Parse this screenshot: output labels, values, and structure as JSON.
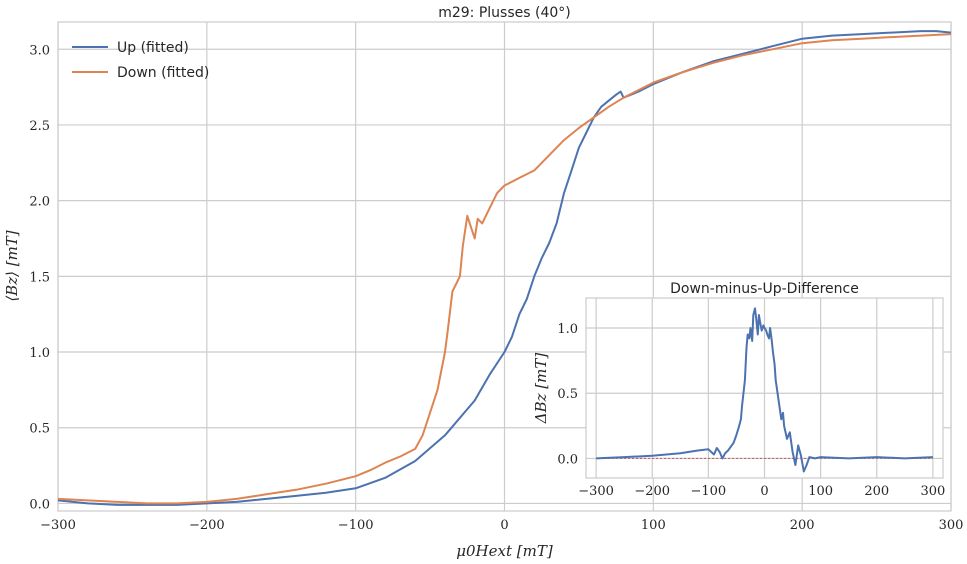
{
  "chart_data": [
    {
      "type": "line",
      "title": "m29: Plusses (40°)",
      "xlabel": "μ0Hext [mT]",
      "ylabel": "⟨Bz⟩ [mT]",
      "xlim": [
        -300,
        300
      ],
      "ylim": [
        -0.05,
        3.18
      ],
      "x_ticks": [
        -300,
        -200,
        -100,
        0,
        100,
        200,
        300
      ],
      "x_tick_labels": [
        "−300",
        "−200",
        "−100",
        "0",
        "100",
        "200",
        "300"
      ],
      "y_ticks": [
        0.0,
        0.5,
        1.0,
        1.5,
        2.0,
        2.5,
        3.0
      ],
      "y_tick_labels": [
        "0.0",
        "0.5",
        "1.0",
        "1.5",
        "2.0",
        "2.5",
        "3.0"
      ],
      "grid": true,
      "legend": "top-left",
      "series": [
        {
          "name": "Up (fitted)",
          "color": "#4c72b0",
          "x": [
            -300,
            -280,
            -260,
            -240,
            -220,
            -200,
            -180,
            -160,
            -140,
            -120,
            -100,
            -80,
            -60,
            -40,
            -20,
            -10,
            0,
            5,
            10,
            15,
            20,
            25,
            30,
            35,
            40,
            45,
            50,
            55,
            60,
            65,
            70,
            75,
            78,
            80,
            90,
            100,
            120,
            140,
            160,
            180,
            200,
            220,
            240,
            260,
            280,
            290,
            300
          ],
          "y": [
            0.02,
            0.0,
            -0.01,
            -0.01,
            -0.01,
            0.0,
            0.01,
            0.03,
            0.05,
            0.07,
            0.1,
            0.17,
            0.28,
            0.45,
            0.68,
            0.85,
            1.0,
            1.1,
            1.25,
            1.35,
            1.5,
            1.62,
            1.72,
            1.85,
            2.05,
            2.2,
            2.35,
            2.45,
            2.55,
            2.62,
            2.66,
            2.7,
            2.72,
            2.68,
            2.72,
            2.77,
            2.85,
            2.92,
            2.97,
            3.02,
            3.07,
            3.09,
            3.1,
            3.11,
            3.12,
            3.12,
            3.11
          ]
        },
        {
          "name": "Down (fitted)",
          "color": "#dd8452",
          "x": [
            -300,
            -280,
            -260,
            -240,
            -220,
            -200,
            -180,
            -160,
            -140,
            -120,
            -100,
            -90,
            -80,
            -70,
            -60,
            -55,
            -50,
            -45,
            -40,
            -38,
            -35,
            -30,
            -28,
            -25,
            -20,
            -18,
            -15,
            -10,
            -5,
            0,
            10,
            20,
            30,
            40,
            50,
            60,
            70,
            80,
            90,
            100,
            120,
            140,
            160,
            180,
            200,
            220,
            240,
            260,
            280,
            300
          ],
          "y": [
            0.03,
            0.02,
            0.01,
            0.0,
            0.0,
            0.01,
            0.03,
            0.06,
            0.09,
            0.13,
            0.18,
            0.22,
            0.27,
            0.31,
            0.36,
            0.45,
            0.6,
            0.75,
            1.0,
            1.15,
            1.4,
            1.5,
            1.7,
            1.9,
            1.75,
            1.88,
            1.85,
            1.95,
            2.05,
            2.1,
            2.15,
            2.2,
            2.3,
            2.4,
            2.48,
            2.55,
            2.62,
            2.68,
            2.73,
            2.78,
            2.85,
            2.91,
            2.96,
            3.0,
            3.04,
            3.06,
            3.07,
            3.08,
            3.09,
            3.1
          ]
        }
      ]
    },
    {
      "type": "line",
      "title": "Down-minus-Up-Difference",
      "xlabel": "",
      "ylabel": "ΔBz [mT]",
      "xlim": [
        -318,
        318
      ],
      "ylim": [
        -0.15,
        1.23
      ],
      "x_ticks": [
        -300,
        -200,
        -100,
        0,
        100,
        200,
        300
      ],
      "x_tick_labels": [
        "−300",
        "−200",
        "−100",
        "0",
        "100",
        "200",
        "300"
      ],
      "y_ticks": [
        0.0,
        0.5,
        1.0
      ],
      "y_tick_labels": [
        "0.0",
        "0.5",
        "1.0"
      ],
      "grid": true,
      "reference_line": 0,
      "series": [
        {
          "color": "#4c72b0",
          "x": [
            -300,
            -250,
            -200,
            -150,
            -120,
            -100,
            -90,
            -85,
            -80,
            -75,
            -70,
            -65,
            -60,
            -55,
            -50,
            -45,
            -42,
            -40,
            -35,
            -32,
            -30,
            -27,
            -25,
            -22,
            -20,
            -17,
            -15,
            -12,
            -10,
            -8,
            -5,
            -2,
            0,
            3,
            5,
            8,
            10,
            13,
            15,
            18,
            20,
            25,
            30,
            33,
            35,
            40,
            45,
            50,
            55,
            60,
            65,
            70,
            75,
            80,
            90,
            100,
            150,
            200,
            250,
            300
          ],
          "y": [
            0.0,
            0.01,
            0.02,
            0.04,
            0.06,
            0.07,
            0.03,
            0.08,
            0.05,
            0.0,
            0.04,
            0.06,
            0.09,
            0.12,
            0.18,
            0.25,
            0.3,
            0.4,
            0.6,
            0.85,
            0.95,
            0.92,
            1.0,
            0.9,
            1.1,
            1.15,
            1.08,
            0.95,
            1.1,
            1.05,
            0.98,
            1.02,
            1.0,
            0.98,
            0.95,
            0.92,
            1.0,
            0.9,
            0.82,
            0.72,
            0.6,
            0.45,
            0.3,
            0.35,
            0.25,
            0.15,
            0.2,
            0.05,
            -0.05,
            0.1,
            0.02,
            -0.1,
            -0.05,
            0.01,
            0.0,
            0.01,
            0.0,
            0.01,
            0.0,
            0.01
          ]
        }
      ]
    }
  ]
}
